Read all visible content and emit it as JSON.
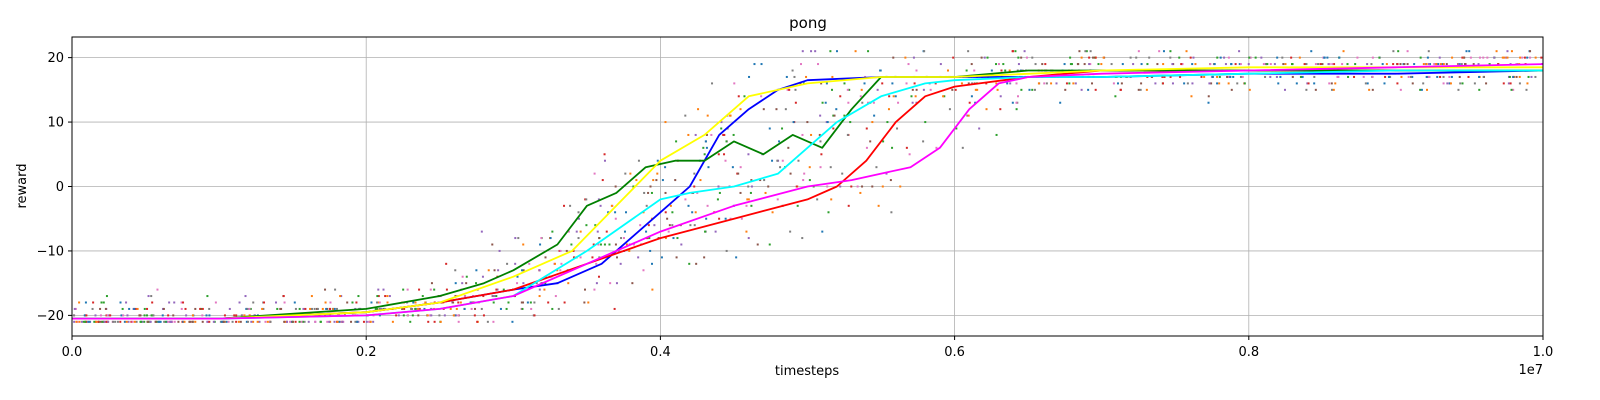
{
  "chart_data": {
    "type": "scatter",
    "title": "pong",
    "xlabel": "timesteps",
    "ylabel": "reward",
    "x_offset_label": "1e7",
    "xlim": [
      0,
      1.0
    ],
    "ylim": [
      -23.2,
      23.2
    ],
    "grid": true,
    "x_ticks": [
      {
        "value": 0.0,
        "label": "0.0"
      },
      {
        "value": 0.2,
        "label": "0.2"
      },
      {
        "value": 0.4,
        "label": "0.4"
      },
      {
        "value": 0.6,
        "label": "0.6"
      },
      {
        "value": 0.8,
        "label": "0.8"
      },
      {
        "value": 1.0,
        "label": "1.0"
      }
    ],
    "y_ticks": [
      {
        "value": -20,
        "label": "−20"
      },
      {
        "value": -10,
        "label": "−10"
      },
      {
        "value": 0,
        "label": "0"
      },
      {
        "value": 10,
        "label": "10"
      },
      {
        "value": 20,
        "label": "20"
      }
    ],
    "scatter_colors": [
      "#1f77b4",
      "#ff7f0e",
      "#2ca02c",
      "#d62728",
      "#9467bd",
      "#8c564b",
      "#e377c2",
      "#7f7f7f"
    ],
    "series": [
      {
        "color": "#0000ff",
        "x": [
          0.0,
          0.1,
          0.2,
          0.25,
          0.3,
          0.33,
          0.36,
          0.38,
          0.4,
          0.42,
          0.44,
          0.46,
          0.48,
          0.5,
          0.55,
          0.6,
          0.7,
          0.8,
          0.9,
          1.0
        ],
        "y": [
          -20.5,
          -20.5,
          -19.5,
          -18,
          -16,
          -15,
          -12,
          -8,
          -4,
          0,
          8,
          12,
          15,
          16.5,
          17,
          17,
          17,
          17.5,
          17.5,
          18
        ]
      },
      {
        "color": "#ff0000",
        "x": [
          0.0,
          0.1,
          0.2,
          0.25,
          0.3,
          0.35,
          0.4,
          0.45,
          0.5,
          0.52,
          0.54,
          0.56,
          0.58,
          0.6,
          0.65,
          0.7,
          0.8,
          0.9,
          1.0
        ],
        "y": [
          -20.5,
          -20.5,
          -19.5,
          -18,
          -16,
          -12,
          -8,
          -5,
          -2,
          0,
          4,
          10,
          14,
          15.5,
          17,
          18,
          18,
          18,
          18
        ]
      },
      {
        "color": "#008000",
        "x": [
          0.0,
          0.1,
          0.2,
          0.25,
          0.28,
          0.3,
          0.33,
          0.35,
          0.37,
          0.39,
          0.41,
          0.43,
          0.45,
          0.47,
          0.49,
          0.51,
          0.53,
          0.55,
          0.6,
          0.65,
          0.7,
          0.8,
          0.9,
          1.0
        ],
        "y": [
          -20.5,
          -20.5,
          -19,
          -17,
          -15,
          -13,
          -9,
          -3,
          -1,
          3,
          4,
          4,
          7,
          5,
          8,
          6,
          12,
          17,
          17,
          18,
          18,
          18,
          18,
          18
        ]
      },
      {
        "color": "#ffff00",
        "x": [
          0.0,
          0.1,
          0.2,
          0.25,
          0.3,
          0.34,
          0.37,
          0.4,
          0.43,
          0.46,
          0.5,
          0.55,
          0.6,
          0.7,
          0.8,
          0.9,
          1.0
        ],
        "y": [
          -20.5,
          -20.5,
          -19.5,
          -18,
          -14,
          -10,
          -3,
          4,
          8,
          14,
          16,
          17,
          17,
          18,
          18.5,
          18.5,
          18.5
        ]
      },
      {
        "color": "#00ffff",
        "x": [
          0.0,
          0.1,
          0.2,
          0.25,
          0.3,
          0.35,
          0.4,
          0.42,
          0.45,
          0.48,
          0.5,
          0.52,
          0.55,
          0.58,
          0.6,
          0.65,
          0.7,
          0.8,
          0.9,
          1.0
        ],
        "y": [
          -20.5,
          -20.5,
          -20,
          -19,
          -17,
          -10,
          -2,
          -1,
          0,
          2,
          6,
          10,
          14,
          16,
          16.5,
          17,
          17,
          17.5,
          18,
          18
        ]
      },
      {
        "color": "#ff00ff",
        "x": [
          0.0,
          0.1,
          0.2,
          0.25,
          0.3,
          0.35,
          0.4,
          0.45,
          0.5,
          0.53,
          0.55,
          0.57,
          0.59,
          0.61,
          0.63,
          0.65,
          0.7,
          0.8,
          0.9,
          1.0
        ],
        "y": [
          -20.5,
          -20.5,
          -20,
          -19,
          -17,
          -12,
          -7,
          -3,
          0,
          1,
          2,
          3,
          6,
          12,
          16,
          17,
          17.5,
          18,
          18.5,
          19
        ]
      }
    ]
  }
}
